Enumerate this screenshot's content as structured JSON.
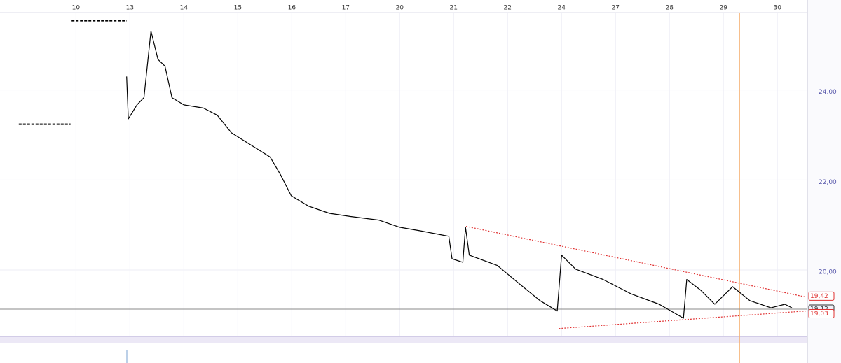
{
  "chart_data": {
    "type": "line",
    "xlim": [
      -1.07,
      13.53
    ],
    "ylim": [
      18.54,
      26.0
    ],
    "xticks": [
      {
        "value": 0,
        "label": "10"
      },
      {
        "value": 1,
        "label": "13"
      },
      {
        "value": 2,
        "label": "14"
      },
      {
        "value": 3,
        "label": "15"
      },
      {
        "value": 4,
        "label": "16"
      },
      {
        "value": 5,
        "label": "17"
      },
      {
        "value": 6,
        "label": "20"
      },
      {
        "value": 7,
        "label": "21"
      },
      {
        "value": 8,
        "label": "22"
      },
      {
        "value": 9,
        "label": "24"
      },
      {
        "value": 10,
        "label": "27"
      },
      {
        "value": 11,
        "label": "28"
      },
      {
        "value": 12,
        "label": "29"
      },
      {
        "value": 13,
        "label": "30"
      }
    ],
    "yticks": [
      {
        "value": 24,
        "label": "24,00"
      },
      {
        "value": 22,
        "label": "22,00"
      },
      {
        "value": 20,
        "label": "20,00"
      }
    ],
    "grid": true,
    "series": [
      {
        "color": "#000000",
        "style": "dashed",
        "x": [
          -1.06,
          -0.1
        ],
        "values": [
          23.24,
          23.24
        ]
      },
      {
        "color": "#000000",
        "style": "dashed",
        "x": [
          -0.08,
          0.94
        ],
        "values": [
          25.54,
          25.54
        ]
      },
      {
        "color": "#000000",
        "style": "solid",
        "x": [
          0.94,
          0.97,
          1.13,
          1.26,
          1.39,
          1.52,
          1.65,
          1.78,
          2.0,
          2.36,
          2.62,
          2.88,
          3.08,
          3.4,
          3.6,
          3.79,
          3.99,
          4.31,
          4.7,
          5.09,
          5.61,
          6.0,
          6.39,
          6.91,
          6.97,
          7.17,
          7.22,
          7.29,
          7.81,
          8.2,
          8.6,
          8.92,
          9.0,
          9.26,
          9.77,
          10.29,
          10.81,
          11.26,
          11.32,
          11.58,
          11.84,
          12.17,
          12.49,
          12.88,
          13.14,
          13.27
        ],
        "values": [
          24.3,
          23.36,
          23.67,
          23.83,
          25.31,
          24.68,
          24.53,
          23.83,
          23.67,
          23.6,
          23.44,
          23.05,
          22.9,
          22.66,
          22.51,
          22.12,
          21.65,
          21.42,
          21.26,
          21.19,
          21.11,
          20.95,
          20.87,
          20.75,
          20.25,
          20.17,
          20.95,
          20.33,
          20.1,
          19.71,
          19.32,
          19.09,
          20.33,
          20.02,
          19.79,
          19.47,
          19.24,
          18.93,
          19.79,
          19.55,
          19.24,
          19.63,
          19.32,
          19.16,
          19.24,
          19.16
        ]
      },
      {
        "color": "#e03030",
        "style": "dotted",
        "x": [
          7.23,
          13.53
        ],
        "values": [
          20.97,
          19.4
        ]
      },
      {
        "color": "#e03030",
        "style": "dotted",
        "x": [
          8.95,
          13.53
        ],
        "values": [
          18.7,
          19.09
        ]
      }
    ],
    "price_line": 19.13,
    "cursor_x": 12.3,
    "price_labels": [
      {
        "value": 19.42,
        "label": "19,42",
        "color": "#e03030"
      },
      {
        "value": 19.13,
        "label": "19,13",
        "color": "#333333"
      },
      {
        "value": 19.03,
        "label": "19,03",
        "color": "#e03030"
      }
    ]
  }
}
